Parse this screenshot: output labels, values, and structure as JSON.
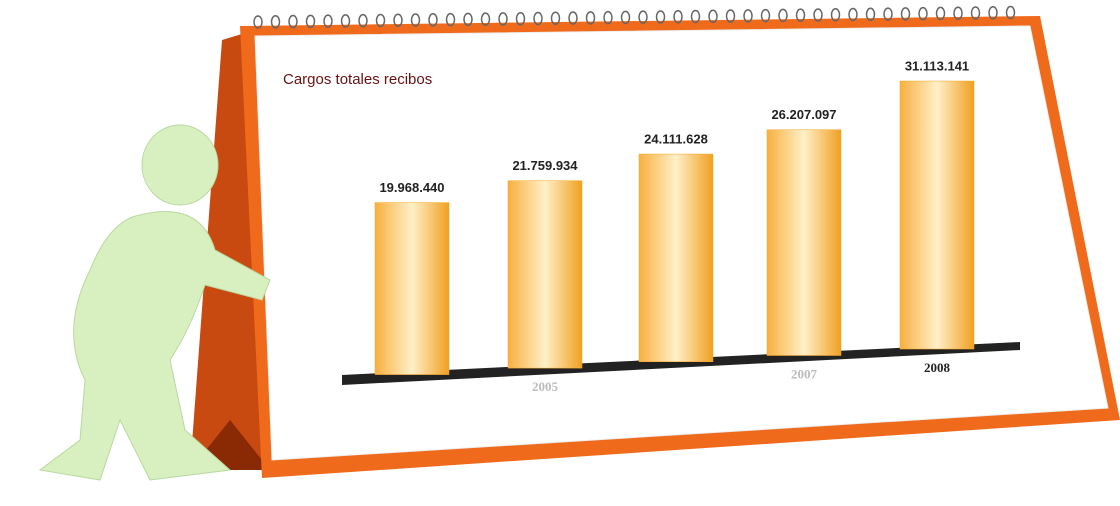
{
  "chart_data": {
    "type": "bar",
    "title": "Cargos totales recibos",
    "categories": [
      null,
      "2005",
      null,
      "2007",
      "2008"
    ],
    "values": [
      19968440,
      21759934,
      24111628,
      26207097,
      31113141
    ],
    "value_labels": [
      "19.968.440",
      "21.759.934",
      "24.111.628",
      "26.207.097",
      "31.113.141"
    ],
    "color": "#f5a623"
  }
}
